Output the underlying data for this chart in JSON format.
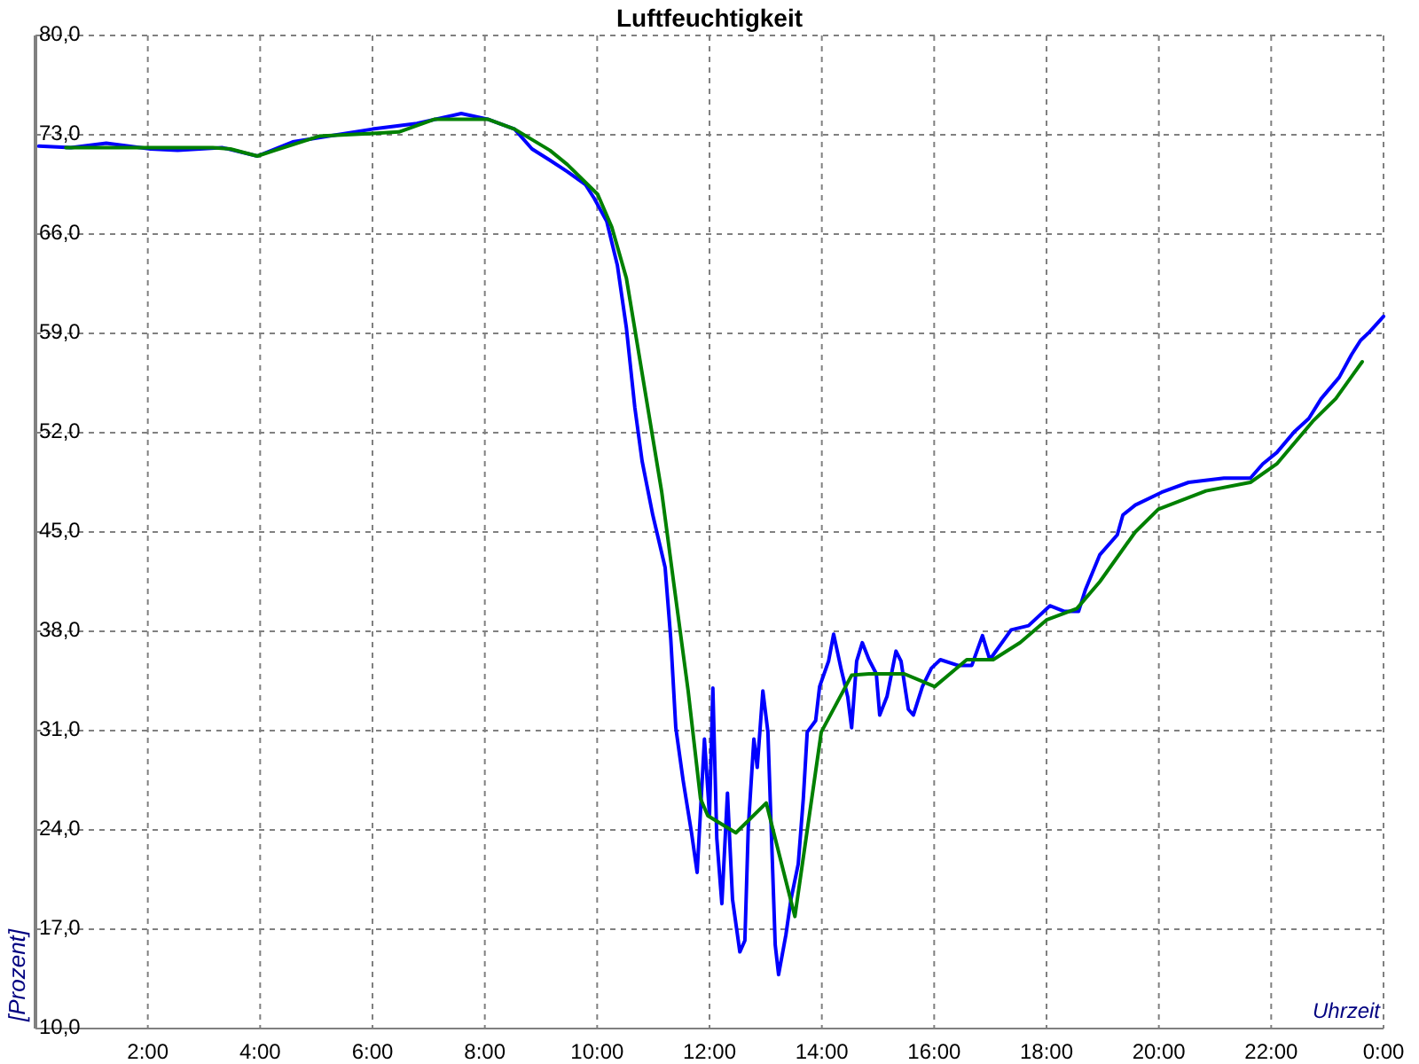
{
  "chart_data": {
    "type": "line",
    "title": "Luftfeuchtigkeit",
    "xlabel": "Uhrzeit",
    "ylabel": "[Prozent]",
    "xlim": [
      0,
      24
    ],
    "xticks": [
      {
        "value": 0,
        "label": null
      },
      {
        "value": 2,
        "label": "2:00"
      },
      {
        "value": 4,
        "label": "4:00"
      },
      {
        "value": 6,
        "label": "6:00"
      },
      {
        "value": 8,
        "label": "8:00"
      },
      {
        "value": 10,
        "label": "10:00"
      },
      {
        "value": 12,
        "label": "12:00"
      },
      {
        "value": 14,
        "label": "14:00"
      },
      {
        "value": 16,
        "label": "16:00"
      },
      {
        "value": 18,
        "label": "18:00"
      },
      {
        "value": 20,
        "label": "20:00"
      },
      {
        "value": 22,
        "label": "22:00"
      },
      {
        "value": 24,
        "label": "0:00"
      }
    ],
    "ylim": [
      10,
      80
    ],
    "yticks": [
      {
        "value": 10,
        "label": "10,0"
      },
      {
        "value": 17,
        "label": "17,0"
      },
      {
        "value": 24,
        "label": "24,0"
      },
      {
        "value": 31,
        "label": "31,0"
      },
      {
        "value": 38,
        "label": "38,0"
      },
      {
        "value": 45,
        "label": "45,0"
      },
      {
        "value": 52,
        "label": "52,0"
      },
      {
        "value": 59,
        "label": "59,0"
      },
      {
        "value": 66,
        "label": "66,0"
      },
      {
        "value": 73,
        "label": "73,0"
      },
      {
        "value": 80,
        "label": "80,0"
      }
    ],
    "grid": true,
    "marker": "none",
    "line_style": "solid",
    "series": [
      {
        "color": "#0000ff",
        "x": [
          0.06,
          0.63,
          1.26,
          2.05,
          2.53,
          3.32,
          3.95,
          4.58,
          5.37,
          6.0,
          6.79,
          7.58,
          8.05,
          8.53,
          8.84,
          9.16,
          9.47,
          9.79,
          9.95,
          10.17,
          10.36,
          10.52,
          10.67,
          10.8,
          10.99,
          11.21,
          11.31,
          11.4,
          11.53,
          11.68,
          11.78,
          11.91,
          12.0,
          12.06,
          12.13,
          12.22,
          12.32,
          12.41,
          12.54,
          12.63,
          12.69,
          12.79,
          12.85,
          12.95,
          13.04,
          13.17,
          13.23,
          13.36,
          13.45,
          13.58,
          13.67,
          13.74,
          13.89,
          13.96,
          14.12,
          14.21,
          14.34,
          14.46,
          14.53,
          14.62,
          14.72,
          14.84,
          14.97,
          15.03,
          15.16,
          15.32,
          15.41,
          15.54,
          15.63,
          15.79,
          15.95,
          16.11,
          16.42,
          16.67,
          16.86,
          16.99,
          17.37,
          17.68,
          18.06,
          18.32,
          18.57,
          18.69,
          18.95,
          19.26,
          19.36,
          19.58,
          20.05,
          20.53,
          21.16,
          21.63,
          21.85,
          22.1,
          22.42,
          22.67,
          22.89,
          23.21,
          23.43,
          23.59,
          23.75,
          24.0
        ],
        "values": [
          72.2,
          72.1,
          72.4,
          72,
          71.9,
          72.1,
          71.5,
          72.5,
          73,
          73.4,
          73.8,
          74.5,
          74.1,
          73.4,
          72,
          71.2,
          70.4,
          69.5,
          68.5,
          66.9,
          63.8,
          59.4,
          53.8,
          50,
          46.2,
          42.5,
          37.5,
          31.2,
          27.5,
          23.8,
          21,
          30.4,
          25,
          34,
          23.4,
          18.8,
          26.6,
          19.1,
          15.4,
          16.2,
          24.1,
          30.4,
          28.4,
          33.8,
          30.9,
          15.9,
          13.8,
          16.6,
          19.1,
          21.6,
          26.2,
          30.9,
          31.7,
          34.1,
          35.9,
          37.8,
          35.4,
          33.4,
          31.2,
          35.9,
          37.2,
          36,
          35,
          32.1,
          33.4,
          36.6,
          35.9,
          32.5,
          32.1,
          34.1,
          35.4,
          36,
          35.6,
          35.6,
          37.7,
          36,
          38.1,
          38.4,
          39.8,
          39.4,
          39.4,
          40.9,
          43.4,
          44.8,
          46.2,
          46.9,
          47.8,
          48.5,
          48.8,
          48.8,
          49.8,
          50.6,
          52.1,
          53,
          54.4,
          55.9,
          57.5,
          58.5,
          59.1,
          60.2
        ]
      },
      {
        "color": "#008000",
        "x": [
          0.54,
          1.89,
          3.16,
          3.47,
          3.95,
          4.26,
          5.05,
          6.0,
          6.47,
          7.11,
          8.05,
          8.53,
          9.16,
          9.47,
          10.01,
          10.26,
          10.52,
          10.8,
          11.15,
          11.37,
          11.62,
          11.84,
          11.97,
          12.47,
          13.01,
          13.52,
          13.99,
          14.53,
          14.84,
          15.47,
          16.01,
          16.58,
          17.05,
          17.53,
          18.0,
          18.54,
          18.95,
          19.58,
          19.99,
          20.84,
          21.63,
          22.1,
          22.74,
          23.15,
          23.62
        ],
        "values": [
          72.1,
          72.1,
          72.1,
          72,
          71.5,
          71.9,
          72.9,
          73.1,
          73.2,
          74.1,
          74.1,
          73.4,
          71.9,
          70.9,
          68.8,
          66.5,
          62.9,
          56.2,
          47.8,
          41.2,
          33.8,
          26.2,
          25,
          23.8,
          25.9,
          17.9,
          30.9,
          34.9,
          35,
          35,
          34.1,
          36,
          36,
          37.2,
          38.8,
          39.6,
          41.5,
          45,
          46.6,
          47.9,
          48.5,
          49.8,
          52.8,
          54.4,
          57
        ]
      }
    ]
  }
}
